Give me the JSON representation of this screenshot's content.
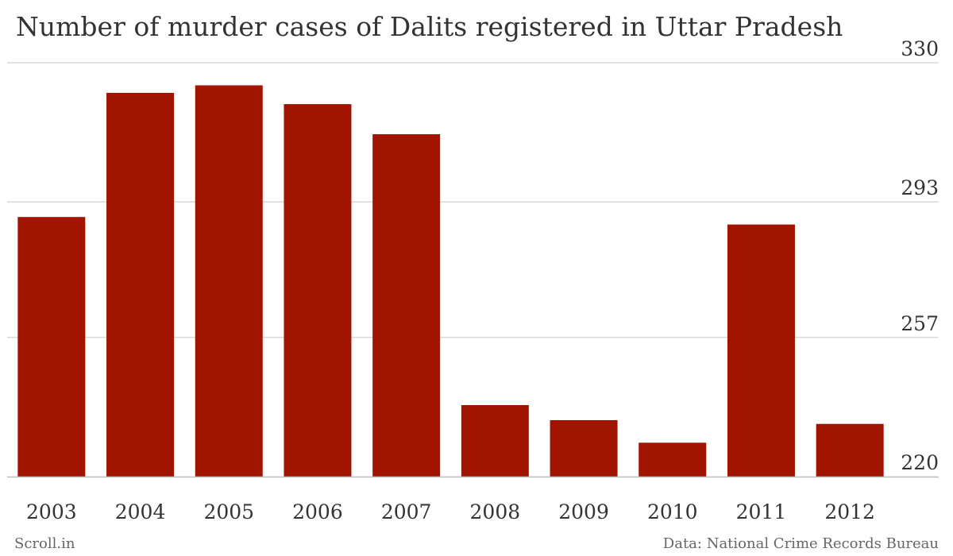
{
  "title": "Number of murder cases of Dalits registered in Uttar Pradesh",
  "footer": {
    "source_left": "Scroll.in",
    "source_right": "Data: National Crime Records Bureau"
  },
  "colors": {
    "bar": "#a11400",
    "grid": "#d9d9d9",
    "axis": "#333333"
  },
  "chart_data": {
    "type": "bar",
    "title": "Number of murder cases of Dalits registered in Uttar Pradesh",
    "xlabel": "",
    "ylabel": "",
    "categories": [
      "2003",
      "2004",
      "2005",
      "2006",
      "2007",
      "2008",
      "2009",
      "2010",
      "2011",
      "2012"
    ],
    "values": [
      289,
      322,
      324,
      319,
      311,
      239,
      235,
      229,
      287,
      234
    ],
    "ylim": [
      220,
      330
    ],
    "yticks": [
      "220",
      "257",
      "293",
      "330"
    ],
    "ytick_values": [
      220,
      257,
      293,
      330
    ],
    "y_axis_position": "right",
    "grid": true,
    "legend": "none"
  }
}
